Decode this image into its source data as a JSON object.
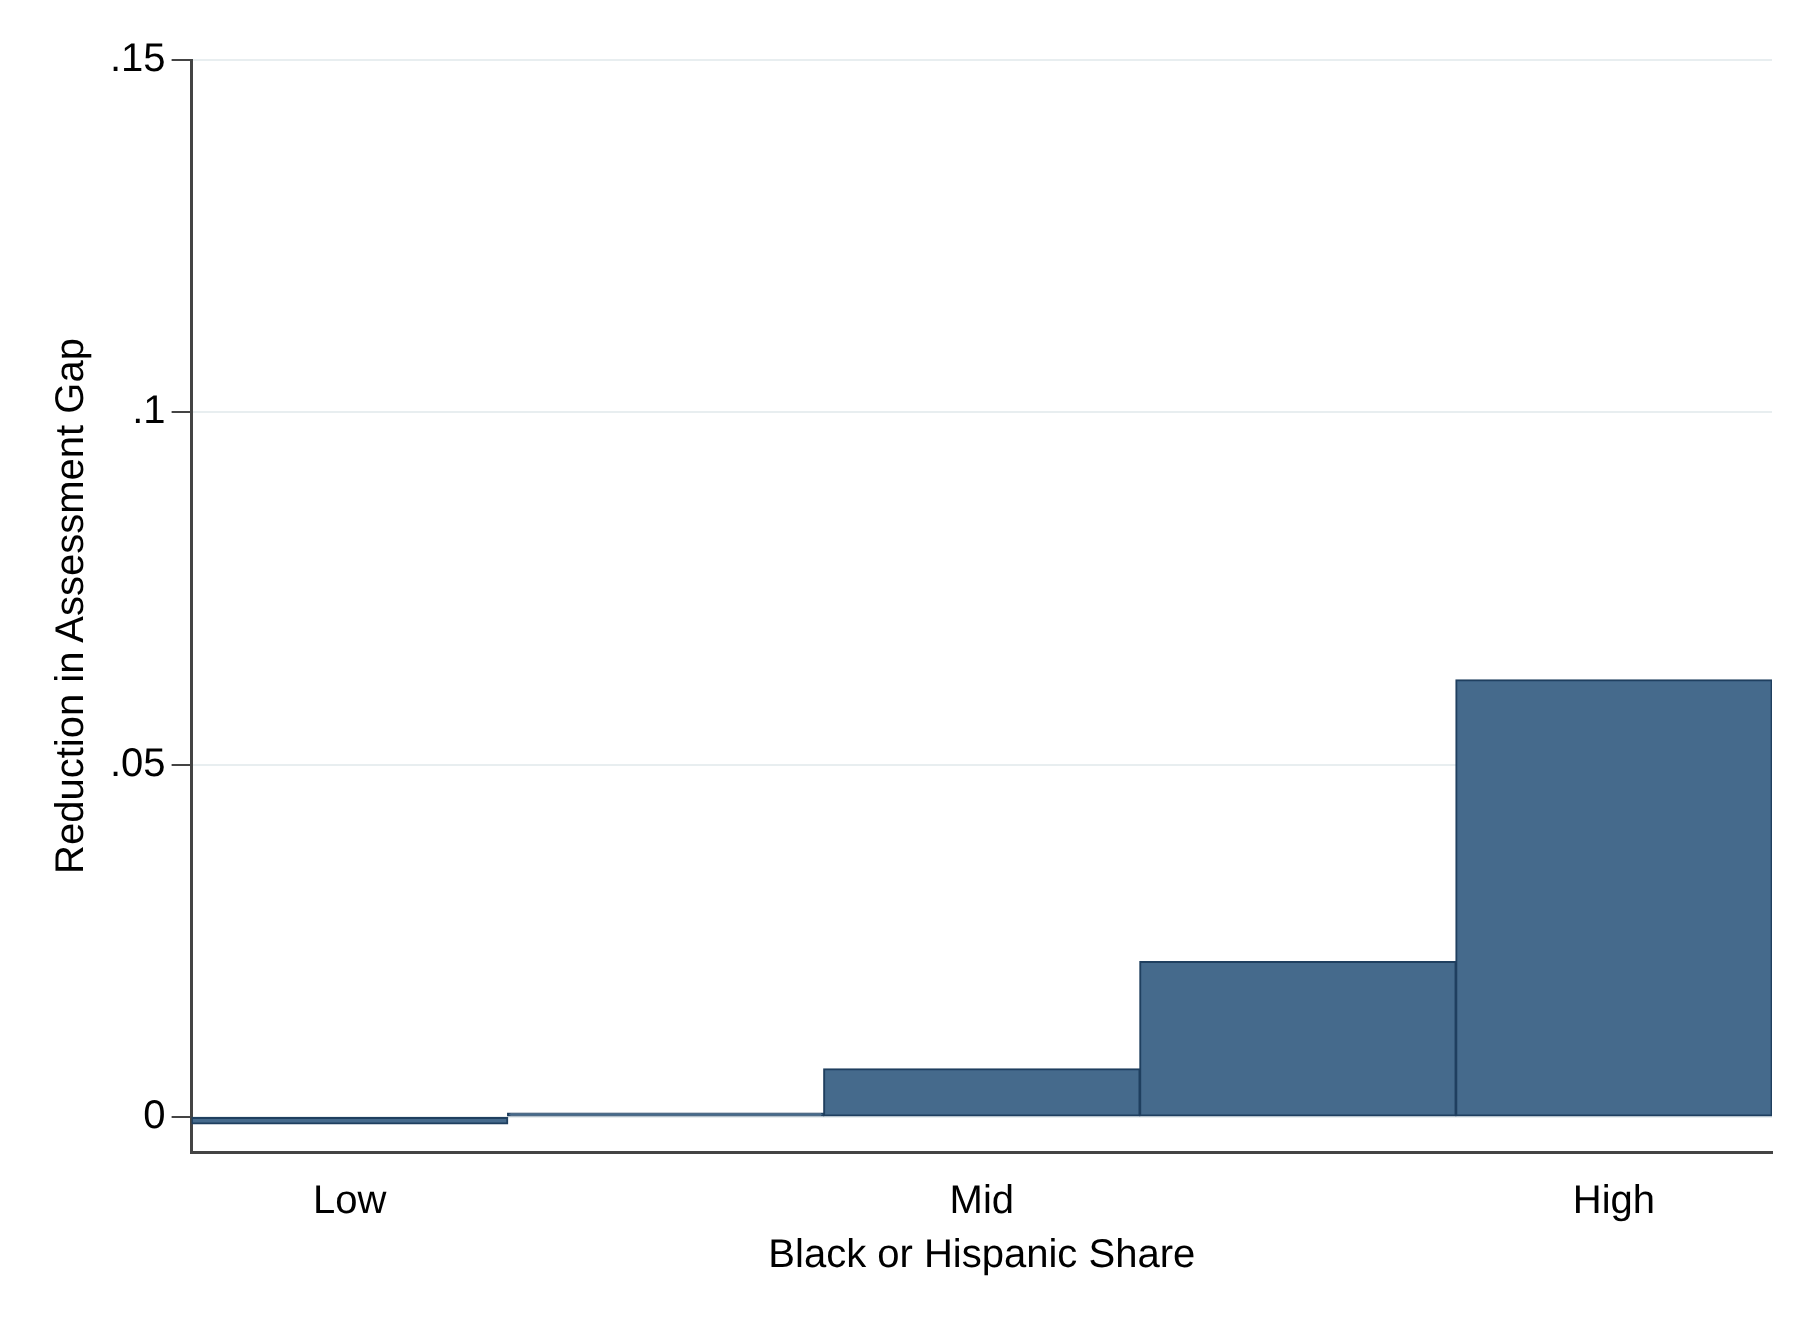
{
  "chart_data": {
    "type": "bar",
    "xlabel": "Black or Hispanic Share",
    "ylabel": "Reduction in Assessment Gap",
    "categories": [
      "Low",
      null,
      "Mid",
      null,
      "High"
    ],
    "values": [
      -0.001,
      0.0005,
      0.0068,
      0.022,
      0.062
    ],
    "color": "#456a8c",
    "ylim": [
      -0.005,
      0.15
    ],
    "yticks": [
      {
        "value": 0,
        "label": "0"
      },
      {
        "value": 0.05,
        "label": ".05"
      },
      {
        "value": 0.1,
        "label": ".1"
      },
      {
        "value": 0.15,
        "label": ".15"
      }
    ],
    "grid": "y"
  }
}
